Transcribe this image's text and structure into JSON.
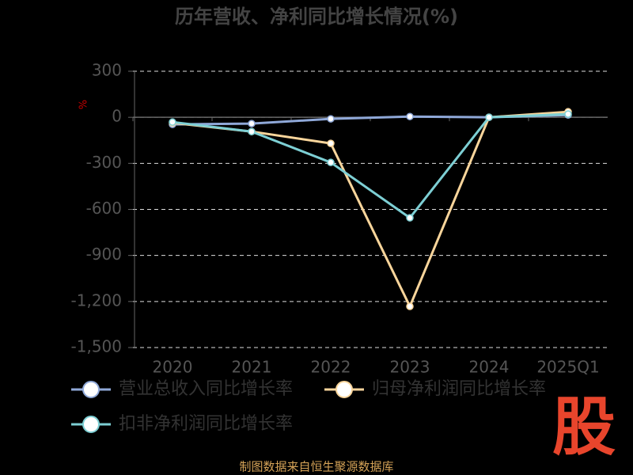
{
  "chart_data": {
    "type": "line",
    "title": "历年营收、净利同比增长情况(%)",
    "y_unit": "%",
    "categories": [
      "2020",
      "2021",
      "2022",
      "2023",
      "2024",
      "2025Q1"
    ],
    "series": [
      {
        "name": "营业总收入同比增长率",
        "color": "#8fa8d8",
        "values": [
          -46,
          -41,
          -10,
          5,
          0,
          15
        ]
      },
      {
        "name": "归母净利润同比增长率",
        "color": "#f9d59b",
        "values": [
          -36,
          -93,
          -170,
          -1232,
          0,
          36
        ]
      },
      {
        "name": "扣非净利润同比增长率",
        "color": "#7dcfd4",
        "values": [
          -31,
          -93,
          -294,
          -655,
          0,
          21
        ]
      }
    ],
    "ylim": [
      -1500,
      300
    ],
    "yticks": [
      300,
      0,
      -300,
      -600,
      -900,
      {
        "value": -1200,
        "label": "-1,200"
      },
      {
        "value": -1500,
        "label": "-1,500"
      }
    ],
    "grid": true,
    "source": "制图数据来自恒生聚源数据库",
    "logo": "股"
  }
}
